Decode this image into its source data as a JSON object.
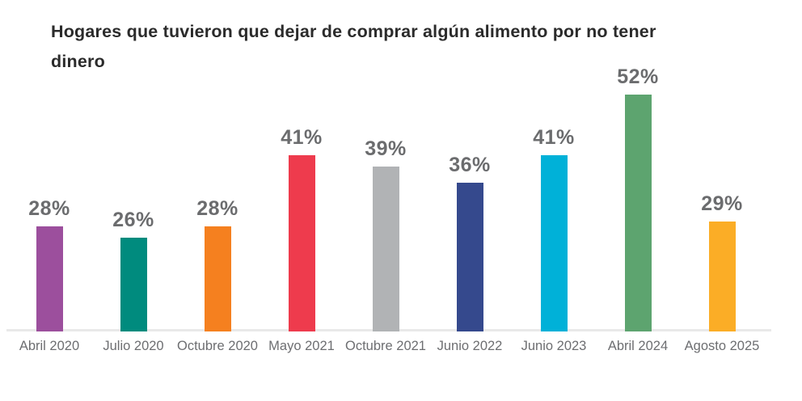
{
  "chart_data": {
    "type": "bar",
    "title": "Hogares que tuvieron que dejar de comprar algún alimento por no tener dinero",
    "categories": [
      "Abril 2020",
      "Julio 2020",
      "Octubre 2020",
      "Mayo 2021",
      "Octubre 2021",
      "Junio 2022",
      "Junio 2023",
      "Abril 2024",
      "Agosto 2025"
    ],
    "values": [
      28,
      26,
      28,
      41,
      39,
      36,
      41,
      52,
      29
    ],
    "value_labels": [
      "28%",
      "26%",
      "28%",
      "41%",
      "39%",
      "36%",
      "41%",
      "52%",
      "29%"
    ],
    "bar_colors": [
      "#9c4f9d",
      "#008b7e",
      "#f5801f",
      "#ee3b4d",
      "#b1b3b5",
      "#35498d",
      "#00b1d8",
      "#5da46f",
      "#fbad26"
    ],
    "xlabel": "",
    "ylabel": "",
    "grid": false,
    "legend": false,
    "data_labels_position": "above-bars",
    "baseline_not_zero": true,
    "colors": {
      "title_text": "#2b2b2b",
      "value_label_text": "#6b6c6e",
      "axis_label_text": "#6d6e71",
      "axis_line": "#e9e9e9",
      "background": "#ffffff"
    }
  }
}
